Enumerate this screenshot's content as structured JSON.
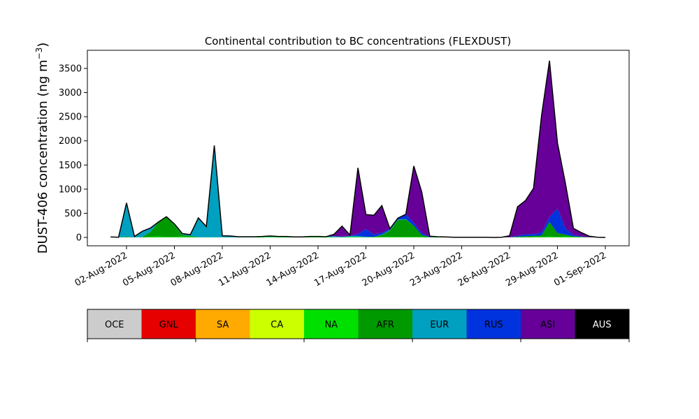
{
  "chart_data": {
    "type": "area",
    "title": "Continental contribution to BC concentrations (FLEXDUST)",
    "xlabel": "",
    "ylabel": "DUST-406 concentration (ng m",
    "ylabel_superscript": "−3",
    "ylabel_close": ")",
    "ylim": [
      -200,
      3880
    ],
    "yticks": [
      0,
      500,
      1000,
      1500,
      2000,
      2500,
      3000,
      3500
    ],
    "xlim": [
      "2022-07-31",
      "2022-09-01"
    ],
    "xticks": [
      "2022-08-02",
      "2022-08-05",
      "2022-08-08",
      "2022-08-11",
      "2022-08-14",
      "2022-08-17",
      "2022-08-20",
      "2022-08-23",
      "2022-08-26",
      "2022-08-29",
      "2022-09-01"
    ],
    "xticklabels": [
      "02-Aug-2022",
      "05-Aug-2022",
      "08-Aug-2022",
      "11-Aug-2022",
      "14-Aug-2022",
      "17-Aug-2022",
      "20-Aug-2022",
      "23-Aug-2022",
      "26-Aug-2022",
      "29-Aug-2022",
      "01-Sep-2022"
    ],
    "stack_order": [
      "OCE",
      "GNL",
      "SA",
      "CA",
      "NA",
      "AFR",
      "EUR",
      "RUS",
      "ASI",
      "AUS"
    ],
    "x": [
      "2022-08-01 00:00",
      "2022-08-01 12:00",
      "2022-08-02 00:00",
      "2022-08-02 12:00",
      "2022-08-03 00:00",
      "2022-08-03 12:00",
      "2022-08-04 00:00",
      "2022-08-04 12:00",
      "2022-08-05 00:00",
      "2022-08-05 12:00",
      "2022-08-06 00:00",
      "2022-08-06 12:00",
      "2022-08-07 00:00",
      "2022-08-07 12:00",
      "2022-08-08 00:00",
      "2022-08-08 12:00",
      "2022-08-09 00:00",
      "2022-08-09 12:00",
      "2022-08-10 00:00",
      "2022-08-10 12:00",
      "2022-08-11 00:00",
      "2022-08-11 12:00",
      "2022-08-12 00:00",
      "2022-08-12 12:00",
      "2022-08-13 00:00",
      "2022-08-13 12:00",
      "2022-08-14 00:00",
      "2022-08-14 12:00",
      "2022-08-15 00:00",
      "2022-08-15 12:00",
      "2022-08-16 00:00",
      "2022-08-16 12:00",
      "2022-08-17 00:00",
      "2022-08-17 12:00",
      "2022-08-18 00:00",
      "2022-08-18 12:00",
      "2022-08-19 00:00",
      "2022-08-19 12:00",
      "2022-08-20 00:00",
      "2022-08-20 12:00",
      "2022-08-21 00:00",
      "2022-08-21 12:00",
      "2022-08-22 00:00",
      "2022-08-22 12:00",
      "2022-08-23 00:00",
      "2022-08-23 12:00",
      "2022-08-24 00:00",
      "2022-08-24 12:00",
      "2022-08-25 00:00",
      "2022-08-25 12:00",
      "2022-08-26 00:00",
      "2022-08-26 12:00",
      "2022-08-27 00:00",
      "2022-08-27 12:00",
      "2022-08-28 00:00",
      "2022-08-28 12:00",
      "2022-08-29 00:00",
      "2022-08-29 12:00",
      "2022-08-30 00:00",
      "2022-08-30 12:00",
      "2022-08-31 00:00",
      "2022-08-31 12:00",
      "2022-09-01 00:00"
    ],
    "series": [
      {
        "name": "OCE",
        "color": "#cccccc",
        "values": [
          0,
          0,
          0,
          0,
          0,
          0,
          0,
          0,
          0,
          0,
          0,
          0,
          0,
          0,
          0,
          0,
          0,
          0,
          0,
          0,
          0,
          0,
          0,
          0,
          0,
          0,
          0,
          0,
          0,
          0,
          0,
          0,
          0,
          0,
          0,
          0,
          0,
          0,
          0,
          0,
          0,
          0,
          0,
          0,
          0,
          0,
          0,
          0,
          0,
          0,
          0,
          0,
          0,
          0,
          0,
          0,
          0,
          0,
          0,
          0,
          0,
          0,
          0
        ]
      },
      {
        "name": "GNL",
        "color": "#e60000",
        "values": [
          0,
          0,
          0,
          0,
          0,
          0,
          0,
          0,
          0,
          0,
          0,
          0,
          0,
          0,
          0,
          0,
          0,
          0,
          0,
          0,
          0,
          0,
          0,
          0,
          0,
          0,
          0,
          0,
          0,
          0,
          0,
          0,
          0,
          0,
          0,
          0,
          0,
          0,
          0,
          0,
          0,
          0,
          0,
          0,
          0,
          0,
          0,
          0,
          0,
          0,
          0,
          0,
          0,
          0,
          0,
          0,
          0,
          0,
          0,
          0,
          0,
          0,
          0
        ]
      },
      {
        "name": "SA",
        "color": "#ffaa00",
        "values": [
          0,
          0,
          0,
          0,
          0,
          0,
          0,
          0,
          0,
          0,
          0,
          0,
          0,
          0,
          0,
          0,
          0,
          0,
          0,
          0,
          0,
          0,
          0,
          0,
          0,
          0,
          0,
          0,
          0,
          0,
          0,
          0,
          0,
          0,
          0,
          0,
          0,
          0,
          0,
          0,
          0,
          0,
          0,
          0,
          0,
          0,
          0,
          0,
          0,
          0,
          0,
          0,
          0,
          0,
          0,
          0,
          0,
          0,
          0,
          0,
          0,
          0,
          0
        ]
      },
      {
        "name": "CA",
        "color": "#ccff00",
        "values": [
          0,
          0,
          0,
          0,
          0,
          0,
          0,
          0,
          0,
          0,
          0,
          0,
          0,
          0,
          0,
          0,
          0,
          0,
          0,
          0,
          0,
          0,
          0,
          0,
          0,
          0,
          0,
          0,
          0,
          0,
          0,
          0,
          0,
          0,
          0,
          0,
          0,
          0,
          0,
          0,
          0,
          0,
          0,
          0,
          0,
          0,
          0,
          0,
          0,
          0,
          0,
          0,
          0,
          0,
          0,
          0,
          0,
          0,
          0,
          0,
          0,
          0,
          0
        ]
      },
      {
        "name": "NA",
        "color": "#00e000",
        "values": [
          0,
          0,
          5,
          0,
          5,
          15,
          20,
          10,
          10,
          20,
          10,
          5,
          5,
          5,
          5,
          0,
          5,
          5,
          5,
          10,
          10,
          10,
          10,
          5,
          5,
          10,
          10,
          10,
          5,
          5,
          10,
          10,
          5,
          10,
          10,
          15,
          10,
          10,
          10,
          10,
          5,
          10,
          10,
          5,
          5,
          5,
          5,
          5,
          0,
          5,
          5,
          5,
          5,
          10,
          10,
          20,
          10,
          20,
          10,
          10,
          5,
          5,
          0
        ]
      },
      {
        "name": "AFR",
        "color": "#009900",
        "values": [
          0,
          0,
          10,
          0,
          5,
          100,
          300,
          420,
          250,
          30,
          20,
          0,
          0,
          0,
          0,
          0,
          0,
          0,
          0,
          0,
          0,
          0,
          0,
          0,
          0,
          0,
          0,
          0,
          0,
          0,
          0,
          0,
          0,
          0,
          40,
          130,
          350,
          360,
          230,
          40,
          0,
          0,
          0,
          0,
          0,
          0,
          0,
          0,
          0,
          0,
          0,
          10,
          20,
          20,
          30,
          300,
          80,
          40,
          10,
          0,
          0,
          0,
          0
        ]
      },
      {
        "name": "EUR",
        "color": "#00a0c0",
        "values": [
          10,
          5,
          700,
          20,
          120,
          80,
          0,
          0,
          20,
          30,
          30,
          400,
          220,
          1900,
          30,
          30,
          10,
          10,
          10,
          10,
          20,
          10,
          10,
          5,
          5,
          10,
          10,
          5,
          20,
          10,
          20,
          20,
          10,
          0,
          10,
          10,
          10,
          10,
          0,
          0,
          0,
          0,
          0,
          0,
          0,
          0,
          0,
          0,
          0,
          0,
          0,
          0,
          0,
          0,
          0,
          0,
          0,
          0,
          0,
          0,
          0,
          0,
          0
        ]
      },
      {
        "name": "RUS",
        "color": "#0033dd",
        "values": [
          0,
          0,
          0,
          0,
          0,
          0,
          0,
          0,
          0,
          0,
          0,
          0,
          0,
          0,
          0,
          0,
          0,
          0,
          0,
          0,
          0,
          0,
          0,
          0,
          0,
          0,
          0,
          0,
          0,
          0,
          0,
          40,
          160,
          50,
          40,
          20,
          30,
          100,
          60,
          40,
          10,
          0,
          0,
          0,
          0,
          0,
          0,
          0,
          0,
          0,
          0,
          20,
          40,
          40,
          60,
          100,
          510,
          130,
          30,
          10,
          0,
          0,
          0
        ]
      },
      {
        "name": "ASI",
        "color": "#660099",
        "values": [
          0,
          0,
          0,
          0,
          0,
          0,
          0,
          0,
          0,
          0,
          0,
          0,
          0,
          0,
          0,
          0,
          0,
          0,
          0,
          0,
          0,
          0,
          0,
          0,
          0,
          0,
          0,
          0,
          40,
          220,
          20,
          1370,
          300,
          400,
          560,
          5,
          0,
          0,
          1180,
          850,
          10,
          5,
          0,
          0,
          0,
          0,
          0,
          0,
          0,
          0,
          30,
          600,
          700,
          950,
          2420,
          3240,
          1360,
          930,
          140,
          80,
          20,
          0,
          0
        ]
      },
      {
        "name": "AUS",
        "color": "#000000",
        "values": [
          0,
          0,
          0,
          0,
          0,
          0,
          0,
          0,
          0,
          0,
          0,
          0,
          0,
          0,
          0,
          0,
          0,
          0,
          0,
          0,
          0,
          0,
          0,
          0,
          0,
          0,
          0,
          0,
          0,
          0,
          0,
          0,
          0,
          0,
          0,
          0,
          0,
          0,
          0,
          0,
          0,
          0,
          0,
          0,
          0,
          0,
          0,
          0,
          0,
          0,
          0,
          0,
          0,
          0,
          0,
          0,
          0,
          0,
          0,
          0,
          0,
          0,
          0
        ]
      }
    ],
    "legend_placement": "bottom colorbar"
  },
  "colorbar": {
    "labels": [
      "OCE",
      "GNL",
      "SA",
      "CA",
      "NA",
      "AFR",
      "EUR",
      "RUS",
      "ASI",
      "AUS"
    ],
    "colors": [
      "#cccccc",
      "#e60000",
      "#ffaa00",
      "#ccff00",
      "#00e000",
      "#009900",
      "#00a0c0",
      "#0033dd",
      "#660099",
      "#000000"
    ],
    "label_colors": [
      "#000000",
      "#000000",
      "#000000",
      "#000000",
      "#000000",
      "#000000",
      "#000000",
      "#000000",
      "#000000",
      "#ffffff"
    ]
  }
}
